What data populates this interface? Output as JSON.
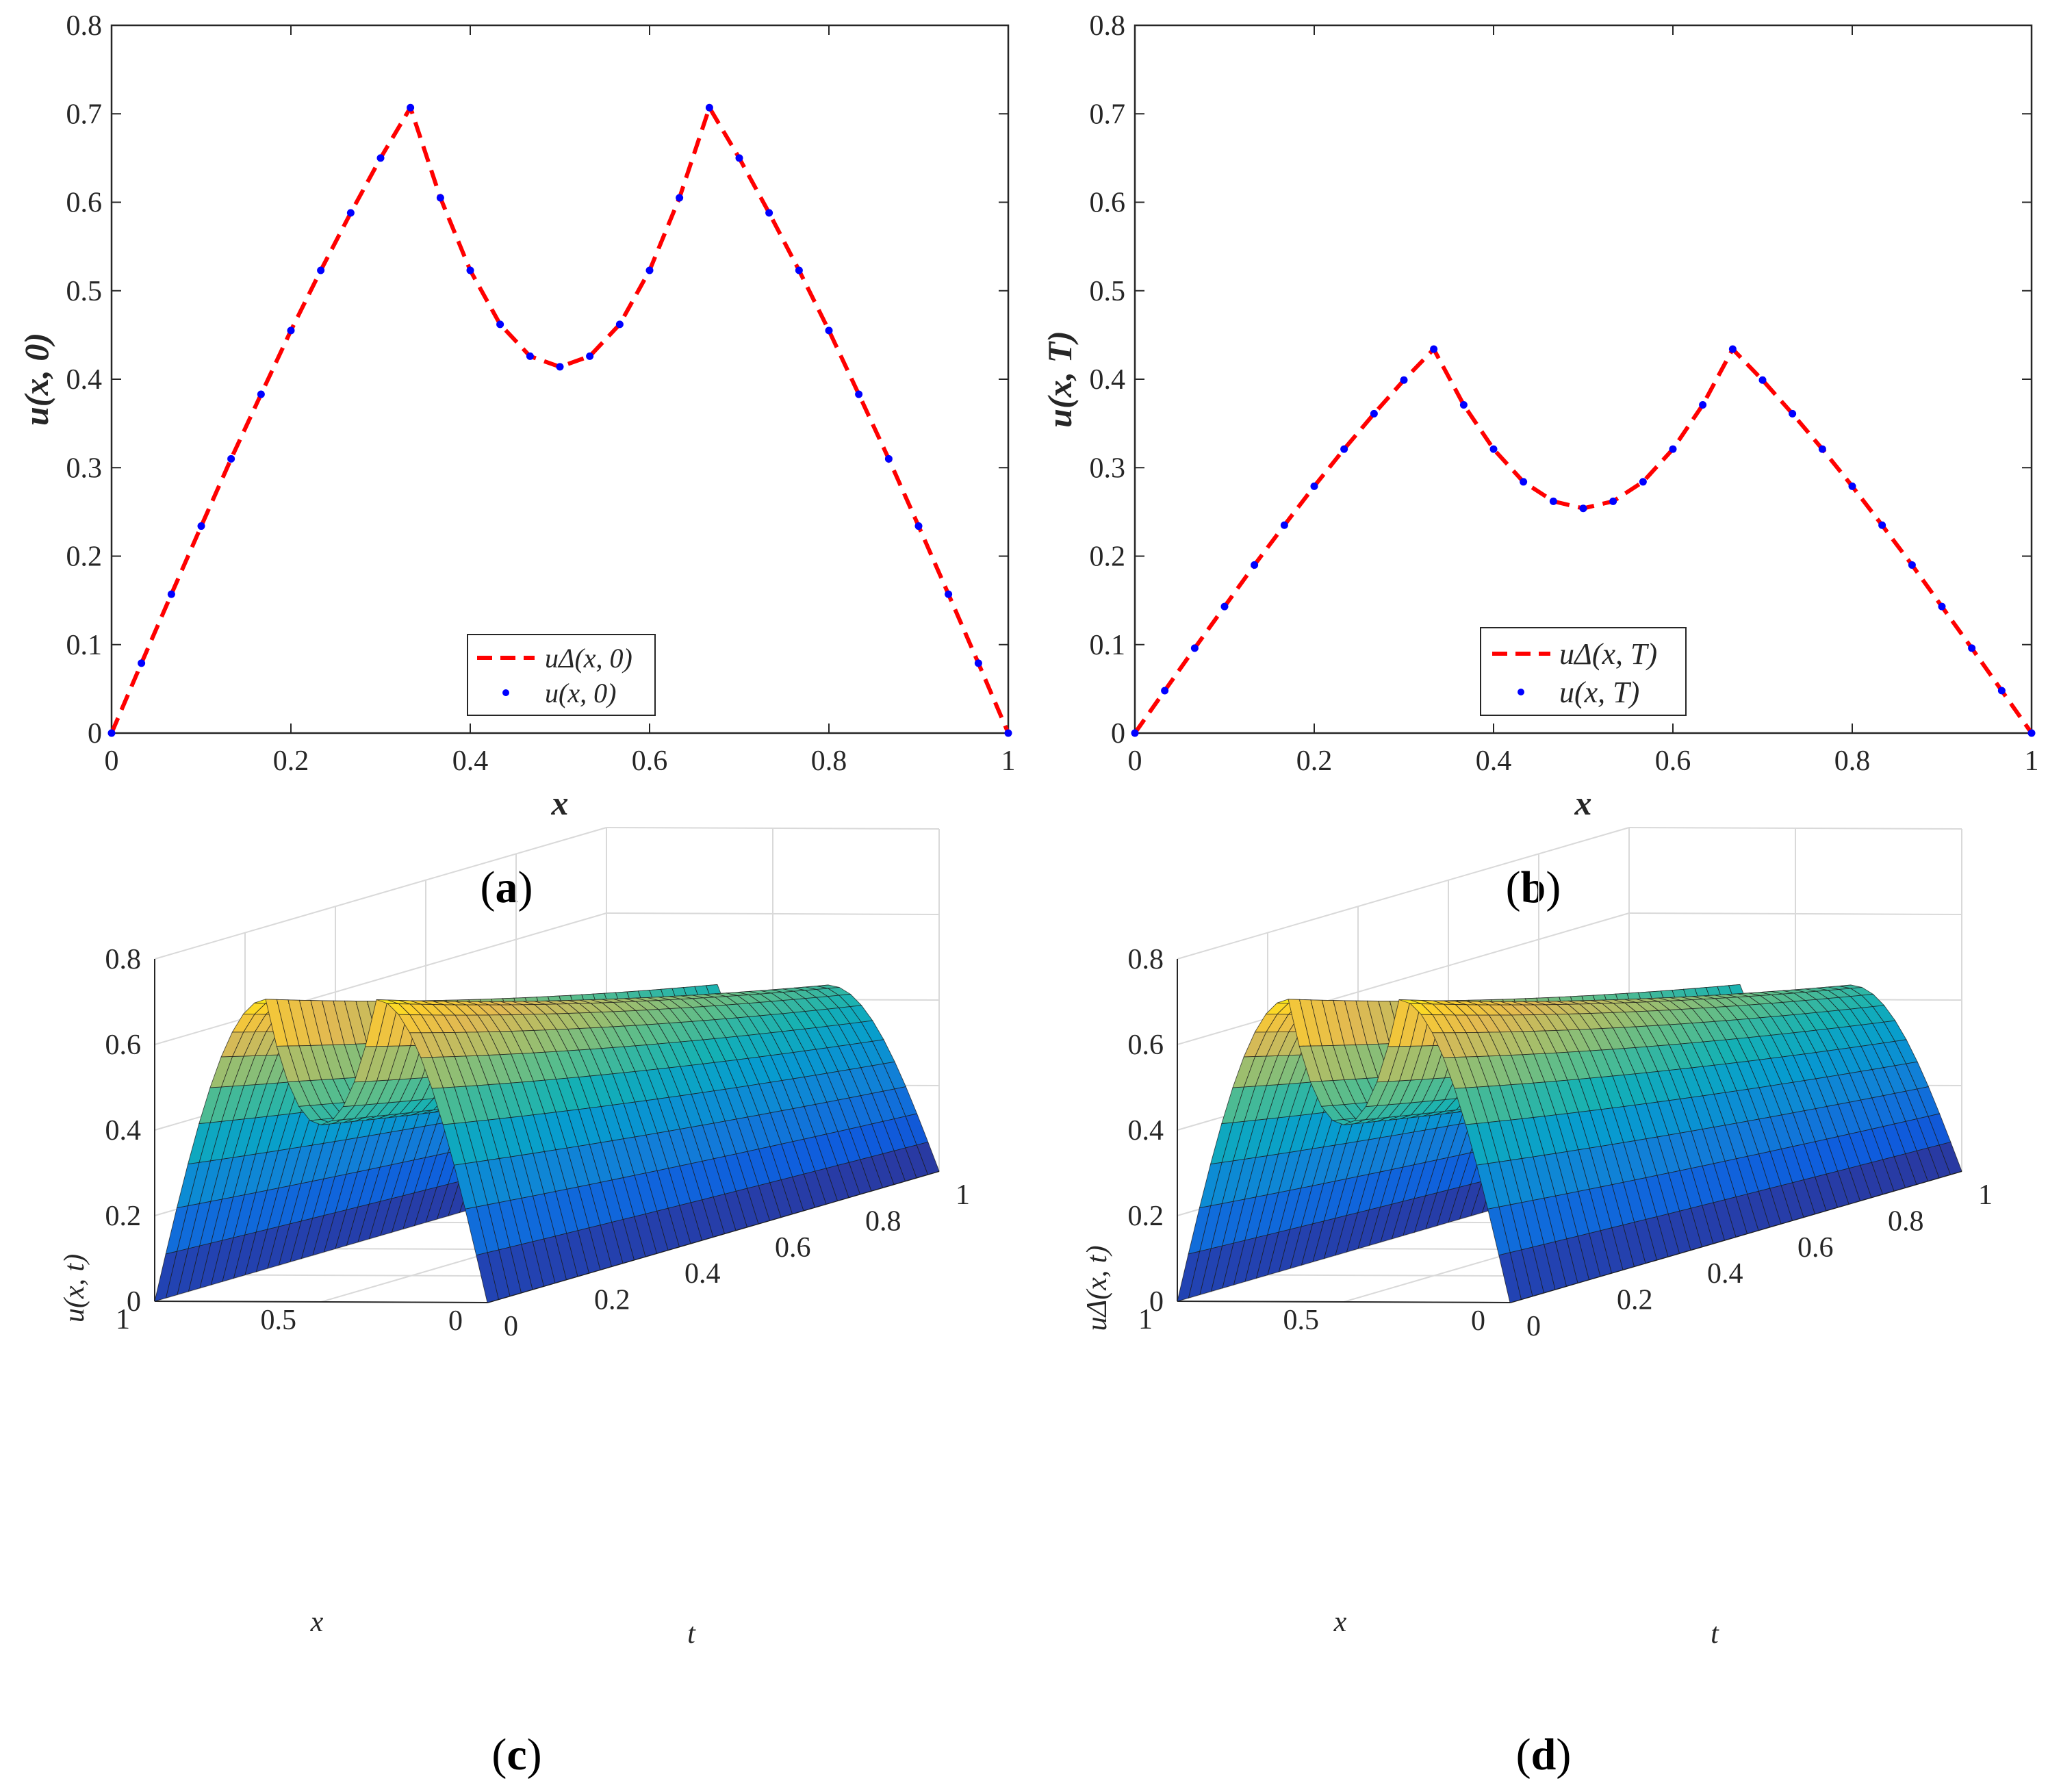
{
  "chart_data": [
    {
      "type": "line",
      "panel_label": [
        "(",
        "a",
        ")"
      ],
      "xlabel": "x",
      "ylabel": "u(x, 0)",
      "xlim": [
        0,
        1
      ],
      "ylim": [
        0,
        0.8
      ],
      "xticks": [
        "0",
        "0.2",
        "0.4",
        "0.6",
        "0.8",
        "1"
      ],
      "yticks": [
        "0",
        "0.1",
        "0.2",
        "0.3",
        "0.4",
        "0.5",
        "0.6",
        "0.7",
        "0.8"
      ],
      "legend_position": "bottom-center",
      "series": [
        {
          "name": "uΔ(x, 0)",
          "style": "dashed",
          "color": "#ff0000",
          "x": [
            0,
            0.0333,
            0.0667,
            0.1,
            0.1333,
            0.1667,
            0.2,
            0.2333,
            0.2667,
            0.3,
            0.3333,
            0.3667,
            0.4,
            0.4333,
            0.4667,
            0.5,
            0.5333,
            0.5667,
            0.6,
            0.6333,
            0.6667,
            0.7,
            0.7333,
            0.7667,
            0.8,
            0.8333,
            0.8667,
            0.9,
            0.9333,
            0.9667,
            1
          ],
          "y": [
            0,
            0.079,
            0.157,
            0.234,
            0.31,
            0.383,
            0.455,
            0.523,
            0.588,
            0.65,
            0.707,
            0.605,
            0.523,
            0.462,
            0.426,
            0.414,
            0.426,
            0.462,
            0.523,
            0.605,
            0.707,
            0.65,
            0.588,
            0.523,
            0.455,
            0.383,
            0.31,
            0.234,
            0.157,
            0.079,
            0
          ]
        },
        {
          "name": "u(x, 0)",
          "style": "dots",
          "color": "#0000ff",
          "x": [
            0,
            0.0333,
            0.0667,
            0.1,
            0.1333,
            0.1667,
            0.2,
            0.2333,
            0.2667,
            0.3,
            0.3333,
            0.3667,
            0.4,
            0.4333,
            0.4667,
            0.5,
            0.5333,
            0.5667,
            0.6,
            0.6333,
            0.6667,
            0.7,
            0.7333,
            0.7667,
            0.8,
            0.8333,
            0.8667,
            0.9,
            0.9333,
            0.9667,
            1
          ],
          "y": [
            0,
            0.079,
            0.157,
            0.234,
            0.31,
            0.383,
            0.455,
            0.523,
            0.588,
            0.65,
            0.707,
            0.605,
            0.523,
            0.462,
            0.426,
            0.414,
            0.426,
            0.462,
            0.523,
            0.605,
            0.707,
            0.65,
            0.588,
            0.523,
            0.455,
            0.383,
            0.31,
            0.234,
            0.157,
            0.079,
            0
          ]
        }
      ]
    },
    {
      "type": "line",
      "panel_label": [
        "(",
        "b",
        ")"
      ],
      "xlabel": "x",
      "ylabel": "u(x, T)",
      "xlim": [
        0,
        1
      ],
      "ylim": [
        0,
        0.8
      ],
      "xticks": [
        "0",
        "0.2",
        "0.4",
        "0.6",
        "0.8",
        "1"
      ],
      "yticks": [
        "0",
        "0.1",
        "0.2",
        "0.3",
        "0.4",
        "0.5",
        "0.6",
        "0.7",
        "0.8"
      ],
      "legend_position": "bottom-center",
      "series": [
        {
          "name": "uΔ(x, T)",
          "style": "dashed",
          "color": "#ff0000",
          "x": [
            0,
            0.0333,
            0.0667,
            0.1,
            0.1333,
            0.1667,
            0.2,
            0.2333,
            0.2667,
            0.3,
            0.3333,
            0.3667,
            0.4,
            0.4333,
            0.4667,
            0.5,
            0.5333,
            0.5667,
            0.6,
            0.6333,
            0.6667,
            0.7,
            0.7333,
            0.7667,
            0.8,
            0.8333,
            0.8667,
            0.9,
            0.9333,
            0.9667,
            1
          ],
          "y": [
            0,
            0.048,
            0.096,
            0.143,
            0.19,
            0.235,
            0.279,
            0.321,
            0.361,
            0.399,
            0.434,
            0.371,
            0.321,
            0.284,
            0.262,
            0.254,
            0.262,
            0.284,
            0.321,
            0.371,
            0.434,
            0.399,
            0.361,
            0.321,
            0.279,
            0.235,
            0.19,
            0.143,
            0.096,
            0.048,
            0
          ]
        },
        {
          "name": "u(x, T)",
          "style": "dots",
          "color": "#0000ff",
          "x": [
            0,
            0.0333,
            0.0667,
            0.1,
            0.1333,
            0.1667,
            0.2,
            0.2333,
            0.2667,
            0.3,
            0.3333,
            0.3667,
            0.4,
            0.4333,
            0.4667,
            0.5,
            0.5333,
            0.5667,
            0.6,
            0.6333,
            0.6667,
            0.7,
            0.7333,
            0.7667,
            0.8,
            0.8333,
            0.8667,
            0.9,
            0.9333,
            0.9667,
            1
          ],
          "y": [
            0,
            0.048,
            0.096,
            0.143,
            0.19,
            0.235,
            0.279,
            0.321,
            0.361,
            0.399,
            0.434,
            0.371,
            0.321,
            0.284,
            0.262,
            0.254,
            0.262,
            0.284,
            0.321,
            0.371,
            0.434,
            0.399,
            0.361,
            0.321,
            0.279,
            0.235,
            0.19,
            0.143,
            0.096,
            0.048,
            0
          ]
        }
      ]
    },
    {
      "type": "surface",
      "panel_label": [
        "(",
        "c",
        ")"
      ],
      "xlabel": "x",
      "ylabel": "t",
      "zlabel": "u(x, t)",
      "xlim": [
        0,
        1
      ],
      "ylim": [
        0,
        1
      ],
      "zlim": [
        0,
        0.8
      ],
      "xticks": [
        "0",
        "0.5",
        "1"
      ],
      "yticks": [
        "0",
        "0.2",
        "0.4",
        "0.6",
        "0.8",
        "1"
      ],
      "zticks": [
        "0",
        "0.2",
        "0.4",
        "0.6",
        "0.8"
      ],
      "colormap": "parula",
      "surface": "u(x, t), decaying from u(x, 0) at t = 0 to u(x, T) at t = 1"
    },
    {
      "type": "surface",
      "panel_label": [
        "(",
        "d",
        ")"
      ],
      "xlabel": "x",
      "ylabel": "t",
      "zlabel": "uΔ(x, t)",
      "xlim": [
        0,
        1
      ],
      "ylim": [
        0,
        1
      ],
      "zlim": [
        0,
        0.8
      ],
      "xticks": [
        "0",
        "0.5",
        "1"
      ],
      "yticks": [
        "0",
        "0.2",
        "0.4",
        "0.6",
        "0.8",
        "1"
      ],
      "zticks": [
        "0",
        "0.2",
        "0.4",
        "0.6",
        "0.8"
      ],
      "colormap": "parula",
      "surface": "uΔ(x, t), decaying from uΔ(x, 0) at t = 0 to uΔ(x, T) at t = 1"
    }
  ]
}
